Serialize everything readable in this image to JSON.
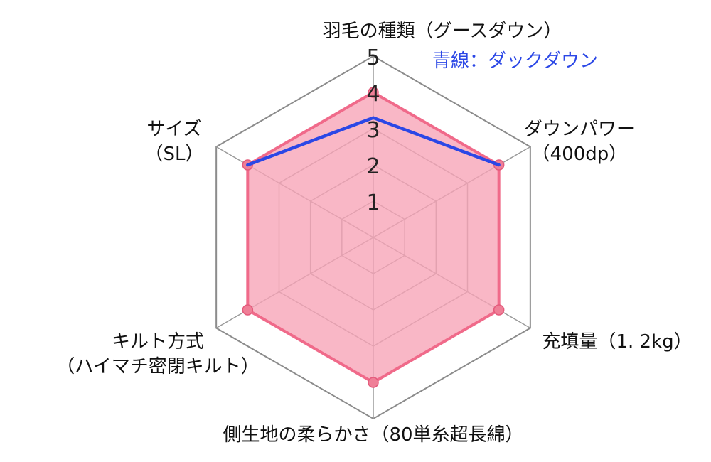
{
  "chart_data": {
    "type": "radar",
    "max": 5,
    "ticks": [
      "1",
      "2",
      "3",
      "4",
      "5"
    ],
    "axes": [
      {
        "lines": [
          "羽毛の種類（グースダウン）"
        ]
      },
      {
        "lines": [
          "ダウンパワー",
          "（400dp）"
        ]
      },
      {
        "lines": [
          "充填量（1. 2kg）"
        ]
      },
      {
        "lines": [
          "側生地の柔らかさ（80単糸超長綿）"
        ]
      },
      {
        "lines": [
          "キルト方式",
          "（ハイマチ密閉キルト）"
        ]
      },
      {
        "lines": [
          "サイズ",
          "（SL）"
        ]
      }
    ],
    "series": [
      {
        "values": [
          4,
          4,
          4,
          4,
          4,
          4
        ],
        "color": "#f06a8a",
        "fill": "#f7a3b6"
      },
      {
        "name": "青線：ダックダウン",
        "values": [
          3.3,
          4,
          null,
          null,
          null,
          4
        ],
        "color": "#2b47e6"
      }
    ]
  }
}
